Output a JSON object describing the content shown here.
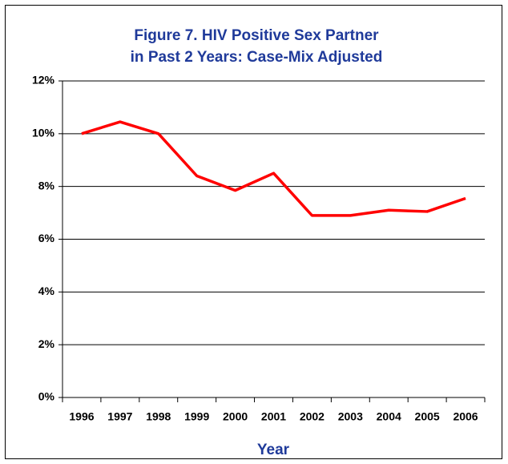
{
  "chart_data": {
    "type": "line",
    "title": [
      "Figure 7. HIV Positive Sex Partner",
      "in Past 2 Years: Case-Mix Adjusted"
    ],
    "x_label": "Year",
    "categories": [
      "1996",
      "1997",
      "1998",
      "1999",
      "2000",
      "2001",
      "2002",
      "2003",
      "2004",
      "2005",
      "2006"
    ],
    "values": [
      10.0,
      10.45,
      10.0,
      8.4,
      7.85,
      8.5,
      6.9,
      6.9,
      7.1,
      7.05,
      7.55
    ],
    "color": "#ff0000",
    "ylim": [
      0,
      12
    ],
    "yticks": [
      {
        "value": 0,
        "label": "0%"
      },
      {
        "value": 2,
        "label": "2%"
      },
      {
        "value": 4,
        "label": "4%"
      },
      {
        "value": 6,
        "label": "6%"
      },
      {
        "value": 8,
        "label": "8%"
      },
      {
        "value": 10,
        "label": "10%"
      },
      {
        "value": 12,
        "label": "12%"
      }
    ],
    "grid": true
  }
}
